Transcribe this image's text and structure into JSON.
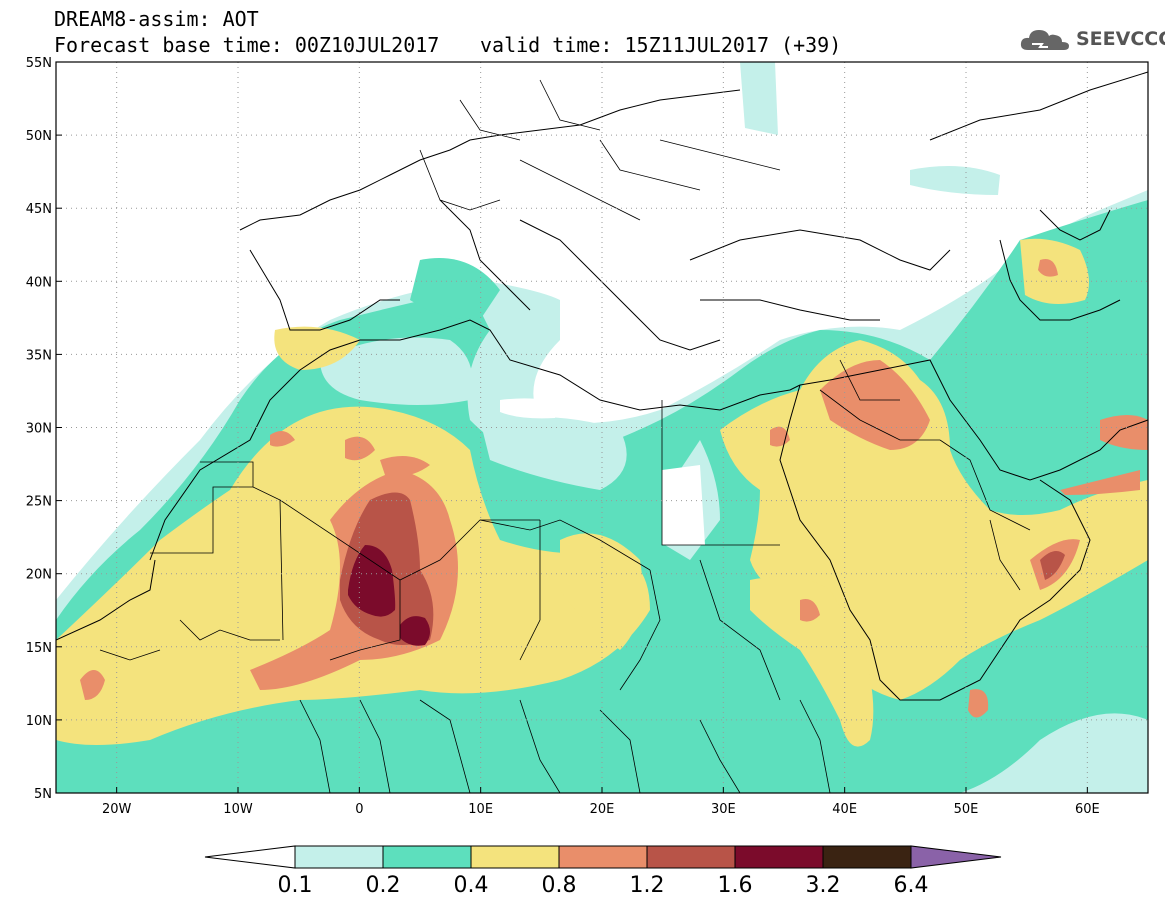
{
  "header": {
    "title": "DREAM8-assim: AOT",
    "base_time": "Forecast base time: 00Z10JUL2017",
    "valid_time": "valid time: 15Z11JUL2017 (+39)",
    "logo_text": "SEEVCCC"
  },
  "map": {
    "lon_range": [
      -25,
      65
    ],
    "lat_range": [
      5,
      55
    ],
    "lat_labels": [
      "55N",
      "50N",
      "45N",
      "40N",
      "35N",
      "30N",
      "25N",
      "20N",
      "15N",
      "10N",
      "5N"
    ],
    "lat_values": [
      55,
      50,
      45,
      40,
      35,
      30,
      25,
      20,
      15,
      10,
      5
    ],
    "lon_labels": [
      "20W",
      "10W",
      "0",
      "10E",
      "20E",
      "30E",
      "40E",
      "50E",
      "60E"
    ],
    "lon_values": [
      -20,
      -10,
      0,
      10,
      20,
      30,
      40,
      50,
      60
    ]
  },
  "colorbar": {
    "labels": [
      "0.1",
      "0.2",
      "0.4",
      "0.8",
      "1.2",
      "1.6",
      "3.2",
      "6.4"
    ],
    "colors": [
      "#ffffff",
      "#c4f0ea",
      "#5ddfbd",
      "#f4e37d",
      "#e98e6a",
      "#b85448",
      "#7b0b2b",
      "#3a2312",
      "#8a62a8"
    ]
  },
  "legend_colors": {
    "level1": "#c4f0ea",
    "level2": "#5ddfbd",
    "level3": "#f4e37d",
    "level4": "#e98e6a",
    "level5": "#b85448",
    "level6": "#7b0b2b",
    "level7": "#3a2312"
  }
}
